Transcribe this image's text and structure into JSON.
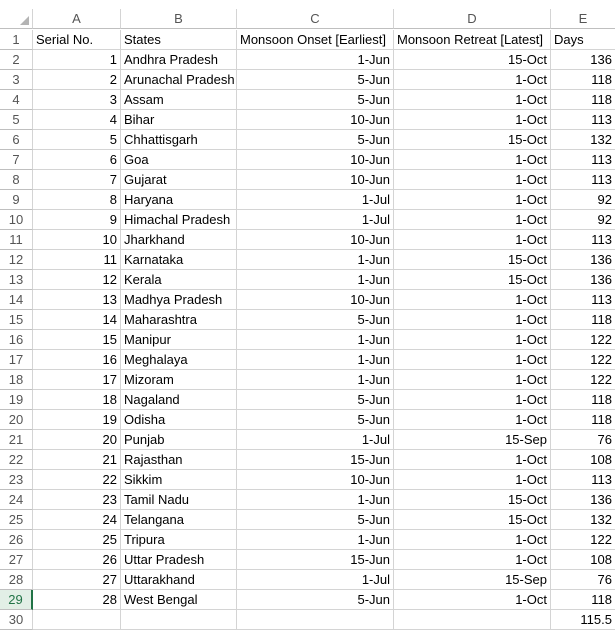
{
  "columns": [
    "A",
    "B",
    "C",
    "D",
    "E"
  ],
  "header_row": {
    "row_num": "1",
    "cells": [
      "Serial No.",
      "States",
      "Monsoon Onset [Earliest]",
      "Monsoon Retreat [Latest]",
      "Days"
    ]
  },
  "rows": [
    {
      "row_num": "2",
      "cells": [
        "1",
        "Andhra Pradesh",
        "1-Jun",
        "15-Oct",
        "136"
      ]
    },
    {
      "row_num": "3",
      "cells": [
        "2",
        "Arunachal Pradesh",
        "5-Jun",
        "1-Oct",
        "118"
      ]
    },
    {
      "row_num": "4",
      "cells": [
        "3",
        "Assam",
        "5-Jun",
        "1-Oct",
        "118"
      ]
    },
    {
      "row_num": "5",
      "cells": [
        "4",
        "Bihar",
        "10-Jun",
        "1-Oct",
        "113"
      ]
    },
    {
      "row_num": "6",
      "cells": [
        "5",
        "Chhattisgarh",
        "5-Jun",
        "15-Oct",
        "132"
      ]
    },
    {
      "row_num": "7",
      "cells": [
        "6",
        "Goa",
        "10-Jun",
        "1-Oct",
        "113"
      ]
    },
    {
      "row_num": "8",
      "cells": [
        "7",
        "Gujarat",
        "10-Jun",
        "1-Oct",
        "113"
      ]
    },
    {
      "row_num": "9",
      "cells": [
        "8",
        "Haryana",
        "1-Jul",
        "1-Oct",
        "92"
      ]
    },
    {
      "row_num": "10",
      "cells": [
        "9",
        "Himachal Pradesh",
        "1-Jul",
        "1-Oct",
        "92"
      ]
    },
    {
      "row_num": "11",
      "cells": [
        "10",
        "Jharkhand",
        "10-Jun",
        "1-Oct",
        "113"
      ]
    },
    {
      "row_num": "12",
      "cells": [
        "11",
        "Karnataka",
        "1-Jun",
        "15-Oct",
        "136"
      ]
    },
    {
      "row_num": "13",
      "cells": [
        "12",
        "Kerala",
        "1-Jun",
        "15-Oct",
        "136"
      ]
    },
    {
      "row_num": "14",
      "cells": [
        "13",
        "Madhya Pradesh",
        "10-Jun",
        "1-Oct",
        "113"
      ]
    },
    {
      "row_num": "15",
      "cells": [
        "14",
        "Maharashtra",
        "5-Jun",
        "1-Oct",
        "118"
      ]
    },
    {
      "row_num": "16",
      "cells": [
        "15",
        "Manipur",
        "1-Jun",
        "1-Oct",
        "122"
      ]
    },
    {
      "row_num": "17",
      "cells": [
        "16",
        "Meghalaya",
        "1-Jun",
        "1-Oct",
        "122"
      ]
    },
    {
      "row_num": "18",
      "cells": [
        "17",
        "Mizoram",
        "1-Jun",
        "1-Oct",
        "122"
      ]
    },
    {
      "row_num": "19",
      "cells": [
        "18",
        "Nagaland",
        "5-Jun",
        "1-Oct",
        "118"
      ]
    },
    {
      "row_num": "20",
      "cells": [
        "19",
        "Odisha",
        "5-Jun",
        "1-Oct",
        "118"
      ]
    },
    {
      "row_num": "21",
      "cells": [
        "20",
        "Punjab",
        "1-Jul",
        "15-Sep",
        "76"
      ]
    },
    {
      "row_num": "22",
      "cells": [
        "21",
        "Rajasthan",
        "15-Jun",
        "1-Oct",
        "108"
      ]
    },
    {
      "row_num": "23",
      "cells": [
        "22",
        "Sikkim",
        "10-Jun",
        "1-Oct",
        "113"
      ]
    },
    {
      "row_num": "24",
      "cells": [
        "23",
        "Tamil Nadu",
        "1-Jun",
        "15-Oct",
        "136"
      ]
    },
    {
      "row_num": "25",
      "cells": [
        "24",
        "Telangana",
        "5-Jun",
        "15-Oct",
        "132"
      ]
    },
    {
      "row_num": "26",
      "cells": [
        "25",
        "Tripura",
        "1-Jun",
        "1-Oct",
        "122"
      ]
    },
    {
      "row_num": "27",
      "cells": [
        "26",
        "Uttar Pradesh",
        "15-Jun",
        "1-Oct",
        "108"
      ]
    },
    {
      "row_num": "28",
      "cells": [
        "27",
        "Uttarakhand",
        "1-Jul",
        "15-Sep",
        "76"
      ]
    },
    {
      "row_num": "29",
      "cells": [
        "28",
        "West Bengal",
        "5-Jun",
        "1-Oct",
        "118"
      ],
      "selected": true
    },
    {
      "row_num": "30",
      "cells": [
        "",
        "",
        "",
        "",
        "115.5"
      ]
    }
  ],
  "colors": {
    "accent": "#217346",
    "gridline": "#d4d4d4",
    "header_text": "#555555"
  }
}
